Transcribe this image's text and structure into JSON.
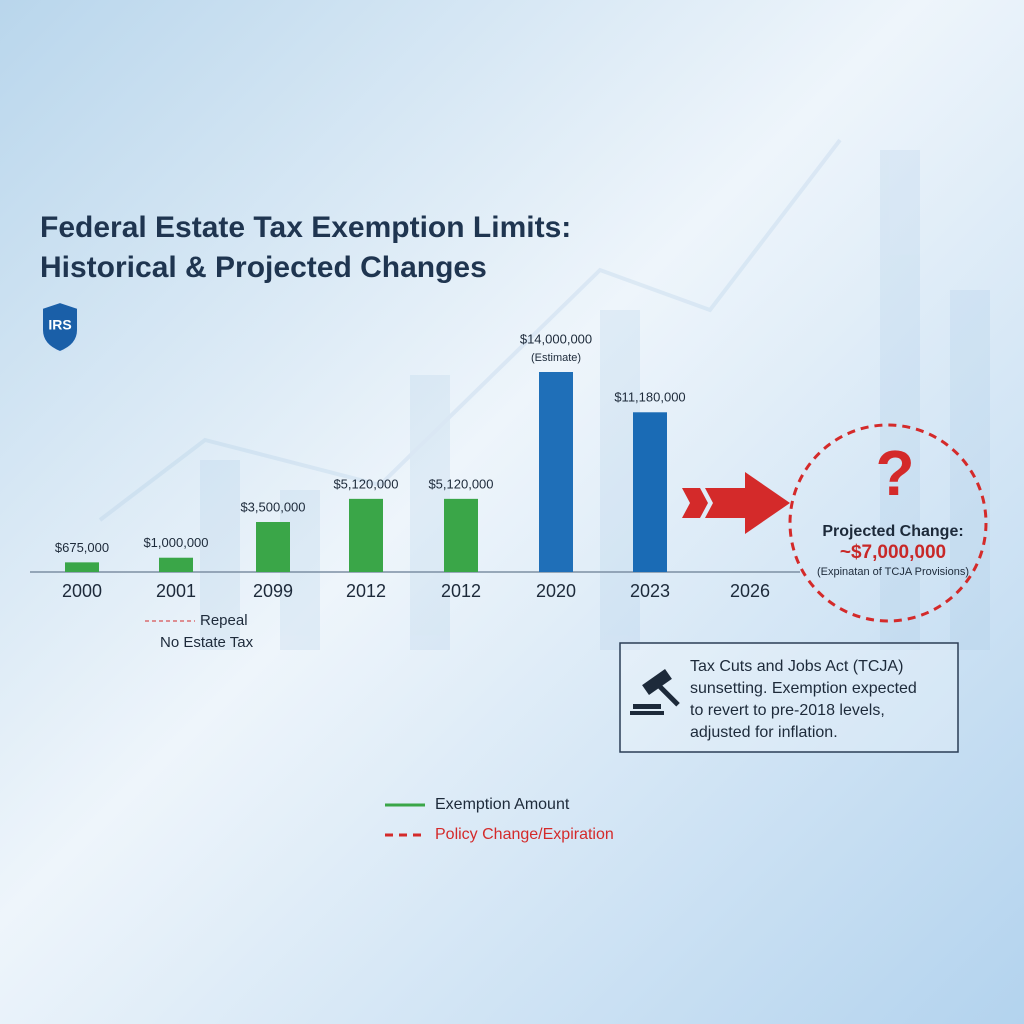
{
  "logo": "IRS",
  "chart_data": {
    "type": "bar",
    "title": [
      "Federal Estate Tax Exemption Limits:",
      "Historical & Projected Changes"
    ],
    "categories": [
      "2000",
      "2001",
      "2099",
      "2012",
      "2012",
      "2020",
      "2023",
      "2026"
    ],
    "series": [
      {
        "name": "Exemption Amount",
        "color": "#3aa648",
        "values": [
          675000,
          1000000,
          3500000,
          5120000,
          5120000,
          14000000,
          11180000,
          null
        ],
        "value_labels": [
          "$675,000",
          "$1,000,000",
          "$3,500,000",
          "$5,120,000",
          "$5,120,000",
          "$14,000,000",
          "$11,180,000",
          null
        ],
        "value_notes": [
          null,
          null,
          null,
          null,
          null,
          "(Estimate)",
          null,
          null
        ],
        "bar_colors": [
          "#3aa648",
          "#3aa648",
          "#3aa648",
          "#3aa648",
          "#3aa648",
          "#1f6fb8",
          "#1a6bb5",
          null
        ]
      }
    ],
    "policy_legend": {
      "name": "Policy Change/Expiration",
      "color": "#d42a2a"
    },
    "repeal_note": [
      "Repeal",
      "No Estate Tax"
    ],
    "projection": {
      "title": "Projected Change:",
      "value_label": "~$7,000,000",
      "note": "(Expinatan of TCJA Provisions)",
      "symbol": "?"
    },
    "info_box": [
      "Tax Cuts and Jobs Act (TCJA)",
      "sunsetting. Exemption expected",
      "to revert to pre-2018 levels,",
      "adjusted for inflation."
    ]
  }
}
